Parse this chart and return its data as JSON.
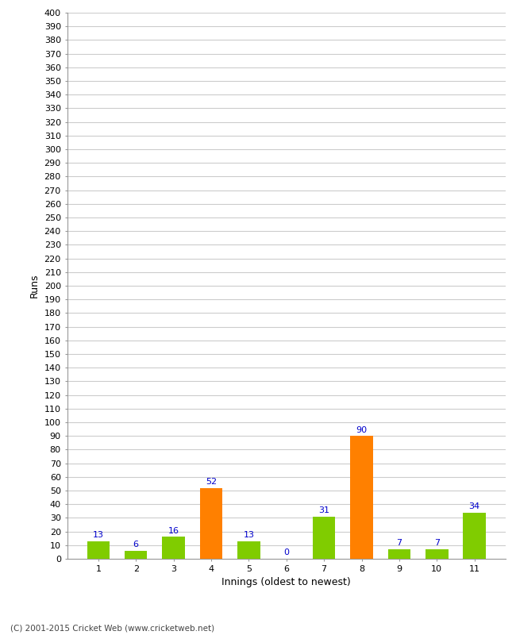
{
  "categories": [
    1,
    2,
    3,
    4,
    5,
    6,
    7,
    8,
    9,
    10,
    11
  ],
  "values": [
    13,
    6,
    16,
    52,
    13,
    0,
    31,
    90,
    7,
    7,
    34
  ],
  "bar_colors": [
    "#80cc00",
    "#80cc00",
    "#80cc00",
    "#ff8000",
    "#80cc00",
    "#80cc00",
    "#80cc00",
    "#ff8000",
    "#80cc00",
    "#80cc00",
    "#80cc00"
  ],
  "xlabel": "Innings (oldest to newest)",
  "ylabel": "Runs",
  "ylim": [
    0,
    400
  ],
  "ytick_step": 10,
  "label_color": "#0000cc",
  "background_color": "#ffffff",
  "grid_color": "#cccccc",
  "footer": "(C) 2001-2015 Cricket Web (www.cricketweb.net)"
}
